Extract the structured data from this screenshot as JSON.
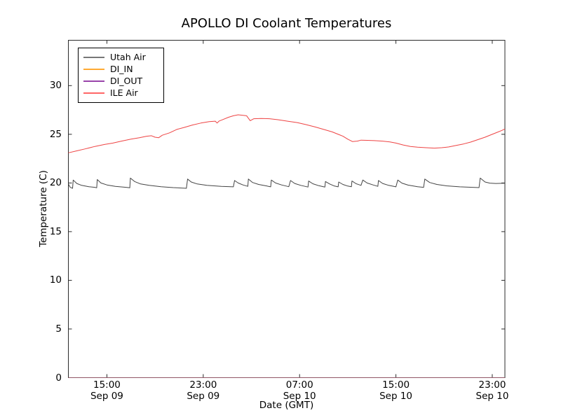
{
  "chart_data": {
    "type": "line",
    "title": "APOLLO DI Coolant Temperatures",
    "xlabel": "Date (GMT)",
    "ylabel": "Temperature (C)",
    "x_unit": "hours since Sep 09 00:00 GMT",
    "xlim": [
      11.8,
      48.05
    ],
    "ylim": [
      0,
      34.66
    ],
    "grid": false,
    "legend_position": "upper left",
    "axis_color": "#2b2b2b",
    "x_ticks": [
      {
        "value": 15,
        "time": "15:00",
        "date": "Sep 09"
      },
      {
        "value": 23,
        "time": "23:00",
        "date": "Sep 09"
      },
      {
        "value": 31,
        "time": "07:00",
        "date": "Sep 10"
      },
      {
        "value": 39,
        "time": "15:00",
        "date": "Sep 10"
      },
      {
        "value": 47,
        "time": "23:00",
        "date": "Sep 10"
      }
    ],
    "y_ticks": [
      0,
      5,
      10,
      15,
      20,
      25,
      30
    ],
    "series": [
      {
        "name": "Utah Air",
        "color": "#444444",
        "points": [
          [
            11.8,
            19.9
          ],
          [
            11.95,
            19.55
          ],
          [
            12.15,
            19.45
          ],
          [
            12.2,
            20.3
          ],
          [
            12.5,
            19.95
          ],
          [
            12.9,
            19.75
          ],
          [
            13.5,
            19.62
          ],
          [
            14.0,
            19.55
          ],
          [
            14.15,
            19.5
          ],
          [
            14.2,
            20.35
          ],
          [
            14.5,
            20.0
          ],
          [
            15.0,
            19.8
          ],
          [
            15.7,
            19.65
          ],
          [
            16.6,
            19.55
          ],
          [
            16.9,
            19.5
          ],
          [
            16.95,
            20.5
          ],
          [
            17.3,
            20.15
          ],
          [
            17.8,
            19.9
          ],
          [
            18.5,
            19.75
          ],
          [
            19.5,
            19.62
          ],
          [
            20.5,
            19.52
          ],
          [
            21.6,
            19.45
          ],
          [
            21.7,
            20.4
          ],
          [
            22.0,
            20.1
          ],
          [
            22.5,
            19.9
          ],
          [
            23.3,
            19.75
          ],
          [
            24.5,
            19.65
          ],
          [
            25.5,
            19.6
          ],
          [
            25.6,
            20.25
          ],
          [
            25.9,
            20.0
          ],
          [
            26.3,
            19.8
          ],
          [
            26.7,
            19.65
          ],
          [
            26.75,
            20.4
          ],
          [
            27.1,
            20.05
          ],
          [
            27.6,
            19.85
          ],
          [
            28.3,
            19.68
          ],
          [
            28.6,
            19.6
          ],
          [
            28.65,
            20.3
          ],
          [
            29.0,
            20.0
          ],
          [
            29.5,
            19.8
          ],
          [
            30.1,
            19.62
          ],
          [
            30.25,
            20.25
          ],
          [
            30.6,
            19.95
          ],
          [
            31.1,
            19.75
          ],
          [
            31.7,
            19.58
          ],
          [
            31.75,
            20.2
          ],
          [
            32.1,
            19.92
          ],
          [
            32.6,
            19.72
          ],
          [
            33.1,
            19.58
          ],
          [
            33.15,
            20.15
          ],
          [
            33.5,
            19.9
          ],
          [
            33.9,
            19.68
          ],
          [
            34.2,
            19.6
          ],
          [
            34.25,
            20.1
          ],
          [
            34.6,
            19.85
          ],
          [
            35.0,
            19.68
          ],
          [
            35.3,
            19.62
          ],
          [
            35.35,
            20.2
          ],
          [
            35.7,
            19.92
          ],
          [
            36.1,
            19.75
          ],
          [
            36.25,
            20.3
          ],
          [
            36.6,
            20.0
          ],
          [
            37.1,
            19.8
          ],
          [
            37.5,
            19.65
          ],
          [
            37.55,
            20.25
          ],
          [
            37.9,
            19.95
          ],
          [
            38.4,
            19.75
          ],
          [
            39.0,
            19.6
          ],
          [
            39.15,
            20.3
          ],
          [
            39.5,
            19.98
          ],
          [
            40.0,
            19.78
          ],
          [
            40.8,
            19.62
          ],
          [
            41.3,
            19.55
          ],
          [
            41.4,
            20.4
          ],
          [
            41.8,
            20.05
          ],
          [
            42.4,
            19.85
          ],
          [
            43.2,
            19.7
          ],
          [
            44.3,
            19.6
          ],
          [
            45.9,
            19.52
          ],
          [
            46.0,
            20.5
          ],
          [
            46.4,
            20.1
          ],
          [
            46.8,
            19.98
          ],
          [
            47.3,
            19.95
          ],
          [
            48.05,
            19.97
          ]
        ]
      },
      {
        "name": "DI_IN",
        "color": "#ffaa33",
        "points": [
          [
            11.8,
            0
          ],
          [
            48.05,
            0
          ]
        ]
      },
      {
        "name": "DI_OUT",
        "color": "#9944aa",
        "points": [
          [
            11.8,
            0
          ],
          [
            48.05,
            0
          ]
        ]
      },
      {
        "name": "ILE Air",
        "color": "#ee4444",
        "points": [
          [
            11.8,
            23.1
          ],
          [
            12.5,
            23.3
          ],
          [
            13.2,
            23.5
          ],
          [
            14.0,
            23.75
          ],
          [
            14.8,
            23.95
          ],
          [
            15.5,
            24.1
          ],
          [
            16.2,
            24.3
          ],
          [
            17.0,
            24.5
          ],
          [
            17.7,
            24.65
          ],
          [
            18.3,
            24.8
          ],
          [
            18.7,
            24.85
          ],
          [
            19.0,
            24.7
          ],
          [
            19.3,
            24.65
          ],
          [
            19.6,
            24.9
          ],
          [
            20.2,
            25.15
          ],
          [
            20.8,
            25.5
          ],
          [
            21.4,
            25.7
          ],
          [
            22.1,
            25.95
          ],
          [
            22.8,
            26.15
          ],
          [
            23.5,
            26.3
          ],
          [
            24.0,
            26.35
          ],
          [
            24.15,
            26.15
          ],
          [
            24.3,
            26.35
          ],
          [
            24.7,
            26.55
          ],
          [
            25.1,
            26.75
          ],
          [
            25.5,
            26.9
          ],
          [
            25.9,
            27.0
          ],
          [
            26.3,
            26.95
          ],
          [
            26.6,
            26.9
          ],
          [
            26.9,
            26.4
          ],
          [
            27.2,
            26.6
          ],
          [
            27.8,
            26.62
          ],
          [
            28.5,
            26.6
          ],
          [
            29.2,
            26.5
          ],
          [
            30.0,
            26.35
          ],
          [
            30.8,
            26.2
          ],
          [
            31.5,
            26.0
          ],
          [
            32.3,
            25.75
          ],
          [
            33.0,
            25.5
          ],
          [
            33.7,
            25.25
          ],
          [
            34.3,
            24.95
          ],
          [
            34.6,
            24.8
          ],
          [
            35.0,
            24.5
          ],
          [
            35.4,
            24.25
          ],
          [
            35.8,
            24.3
          ],
          [
            36.1,
            24.4
          ],
          [
            36.6,
            24.38
          ],
          [
            37.2,
            24.35
          ],
          [
            37.9,
            24.3
          ],
          [
            38.5,
            24.22
          ],
          [
            39.0,
            24.1
          ],
          [
            39.6,
            23.9
          ],
          [
            40.2,
            23.75
          ],
          [
            40.8,
            23.68
          ],
          [
            41.5,
            23.62
          ],
          [
            42.2,
            23.58
          ],
          [
            42.8,
            23.62
          ],
          [
            43.4,
            23.7
          ],
          [
            44.0,
            23.85
          ],
          [
            44.6,
            24.0
          ],
          [
            45.2,
            24.2
          ],
          [
            45.8,
            24.45
          ],
          [
            46.4,
            24.7
          ],
          [
            46.9,
            24.95
          ],
          [
            47.4,
            25.2
          ],
          [
            47.8,
            25.4
          ],
          [
            48.05,
            25.55
          ]
        ]
      }
    ],
    "legend": {
      "entries": [
        {
          "label": "Utah Air",
          "color": "#777777"
        },
        {
          "label": "DI_IN",
          "color": "#ffaa33"
        },
        {
          "label": "DI_OUT",
          "color": "#9944aa"
        },
        {
          "label": "ILE Air",
          "color": "#ff6666"
        }
      ]
    }
  }
}
